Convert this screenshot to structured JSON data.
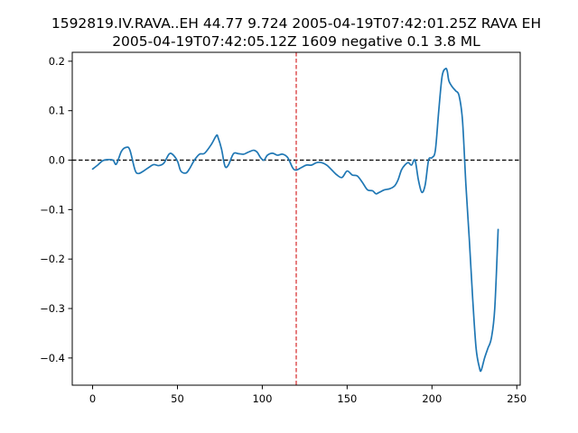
{
  "chart_data": {
    "type": "line",
    "title_line1": "1592819.IV.RAVA..EH 44.77 9.724 2005-04-19T07:42:01.25Z RAVA EH",
    "title_line2": "2005-04-19T07:42:05.12Z 1609 negative 0.1 3.8 ML",
    "xlabel": "",
    "ylabel": "",
    "xlim": [
      -12,
      252
    ],
    "ylim": [
      -0.455,
      0.218
    ],
    "xticks": [
      0,
      50,
      100,
      150,
      200,
      250
    ],
    "yticks": [
      -0.4,
      -0.3,
      -0.2,
      -0.1,
      0.0,
      0.1,
      0.2
    ],
    "ytick_labels": [
      "−0.4",
      "−0.3",
      "−0.2",
      "−0.1",
      "0.0",
      "0.1",
      "0.2"
    ],
    "grid": false,
    "line_color": "#1f77b4",
    "zero_line": {
      "y": 0.0,
      "color": "#000000",
      "style": "dashed"
    },
    "marker_line": {
      "x": 120,
      "color": "#d62728",
      "style": "dashed"
    },
    "series": [
      {
        "x": [
          0,
          3,
          6,
          9,
          12,
          14,
          17,
          20,
          22,
          25,
          27,
          30,
          33,
          36,
          39,
          42,
          45,
          47,
          50,
          52,
          55,
          57,
          60,
          63,
          66,
          70,
          73,
          74,
          76,
          78,
          80,
          83,
          86,
          89,
          91,
          93,
          95,
          97,
          99,
          101,
          103,
          106,
          109,
          112,
          115,
          118,
          120,
          123,
          126,
          129,
          132,
          135,
          138,
          141,
          144,
          147,
          150,
          153,
          156,
          159,
          162,
          165,
          167,
          169,
          172,
          175,
          178,
          180,
          182,
          184,
          186,
          188,
          190,
          192,
          194,
          196,
          198,
          200,
          202,
          204,
          206,
          208,
          209,
          210,
          212,
          214,
          216,
          218,
          220,
          222,
          224,
          226,
          228,
          229,
          231,
          233,
          235,
          237,
          239
        ],
        "values": [
          -0.018,
          -0.01,
          -0.001,
          0.001,
          0.0,
          -0.008,
          0.018,
          0.026,
          0.02,
          -0.02,
          -0.027,
          -0.022,
          -0.015,
          -0.009,
          -0.011,
          -0.006,
          0.012,
          0.012,
          -0.002,
          -0.022,
          -0.026,
          -0.018,
          0.0,
          0.012,
          0.014,
          0.032,
          0.05,
          0.045,
          0.022,
          -0.012,
          -0.01,
          0.013,
          0.013,
          0.012,
          0.015,
          0.018,
          0.02,
          0.016,
          0.005,
          0.0,
          0.01,
          0.014,
          0.01,
          0.012,
          0.005,
          -0.016,
          -0.02,
          -0.015,
          -0.01,
          -0.01,
          -0.005,
          -0.005,
          -0.01,
          -0.02,
          -0.03,
          -0.035,
          -0.022,
          -0.03,
          -0.032,
          -0.045,
          -0.06,
          -0.062,
          -0.068,
          -0.065,
          -0.06,
          -0.058,
          -0.052,
          -0.04,
          -0.02,
          -0.01,
          -0.005,
          -0.01,
          0.0,
          -0.04,
          -0.065,
          -0.05,
          0.0,
          0.005,
          0.02,
          0.1,
          0.17,
          0.185,
          0.18,
          0.16,
          0.148,
          0.14,
          0.13,
          0.08,
          -0.05,
          -0.16,
          -0.28,
          -0.38,
          -0.42,
          -0.425,
          -0.4,
          -0.38,
          -0.36,
          -0.3,
          -0.14
        ]
      }
    ]
  }
}
